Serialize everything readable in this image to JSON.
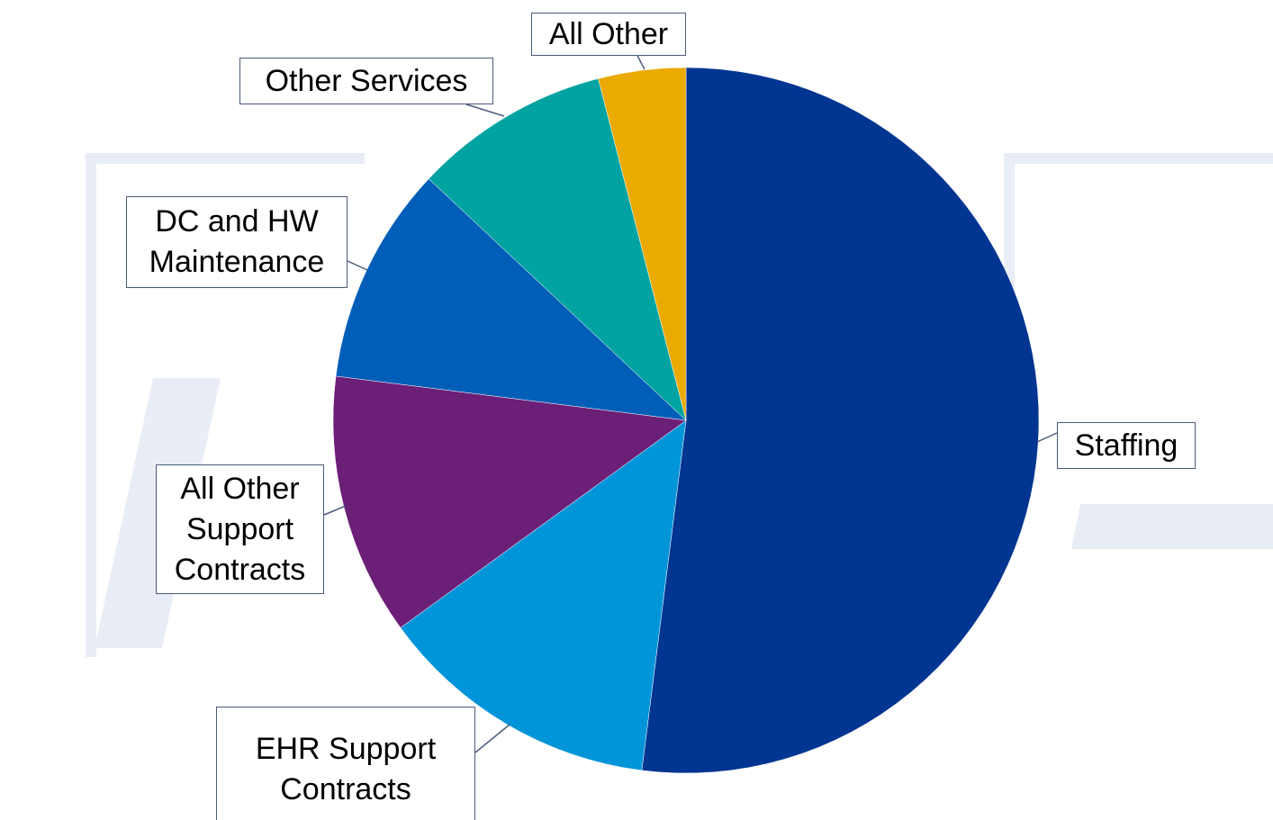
{
  "chart_data": {
    "type": "pie",
    "categories": [
      "Staffing",
      "EHR Support Contracts",
      "All Other Support Contracts",
      "DC and HW Maintenance",
      "Other Services",
      "All Other"
    ],
    "values": [
      52,
      13,
      12,
      10,
      9,
      4
    ],
    "colors": [
      "#003591",
      "#0094d9",
      "#6c1f77",
      "#005eb8",
      "#00a3a1",
      "#eaaa00"
    ]
  }
}
